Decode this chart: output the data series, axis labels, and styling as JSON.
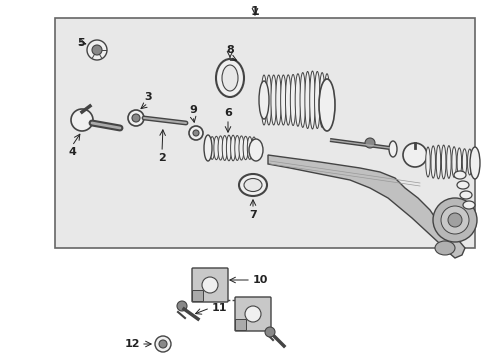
{
  "bg_color": "#ffffff",
  "box_bg": "#e8e8e8",
  "box_border": "#666666",
  "line_color": "#222222",
  "part_color": "#444444",
  "fig_width": 4.89,
  "fig_height": 3.6,
  "dpi": 100
}
